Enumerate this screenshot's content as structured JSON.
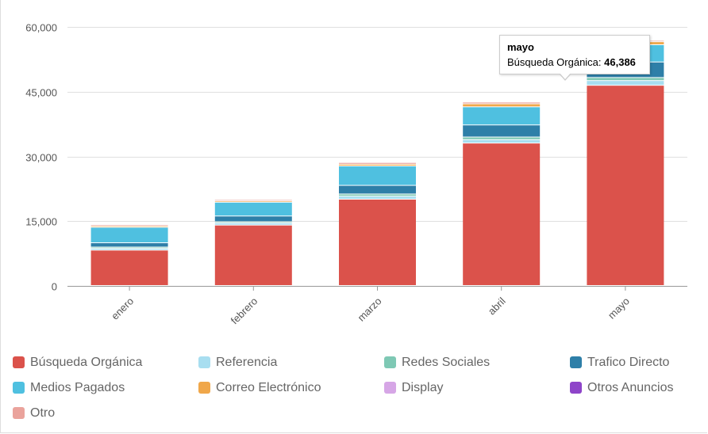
{
  "chart_data": {
    "type": "bar",
    "stacked": true,
    "categories": [
      "enero",
      "febrero",
      "marzo",
      "abril",
      "mayo"
    ],
    "ylim": [
      0,
      60000
    ],
    "yticks": [
      "0",
      "15,000",
      "30,000",
      "45,000",
      "60,000"
    ],
    "ytick_values": [
      0,
      15000,
      30000,
      45000,
      60000
    ],
    "grid": true,
    "legend_position": "bottom",
    "series": [
      {
        "name": "Búsqueda Orgánica",
        "color": "#db524b",
        "values": [
          8200,
          14000,
          20000,
          33000,
          46386
        ]
      },
      {
        "name": "Referencia",
        "color": "#a8def0",
        "values": [
          400,
          500,
          700,
          800,
          1100
        ]
      },
      {
        "name": "Redes Sociales",
        "color": "#7ec8b4",
        "values": [
          300,
          300,
          500,
          600,
          700
        ]
      },
      {
        "name": "Trafico Directo",
        "color": "#2e7fa8",
        "values": [
          1000,
          1300,
          2000,
          2800,
          3600
        ]
      },
      {
        "name": "Medios Pagados",
        "color": "#4fc0e0",
        "values": [
          3600,
          3200,
          4500,
          4200,
          4000
        ]
      },
      {
        "name": "Correo Electrónico",
        "color": "#f0a74a",
        "values": [
          300,
          300,
          400,
          700,
          700
        ]
      },
      {
        "name": "Display",
        "color": "#d6a6e6",
        "values": [
          0,
          0,
          0,
          0,
          0
        ]
      },
      {
        "name": "Otros Anuncios",
        "color": "#8e44c9",
        "values": [
          0,
          0,
          0,
          0,
          0
        ]
      },
      {
        "name": "Otro",
        "color": "#eaa39c",
        "values": [
          300,
          300,
          400,
          400,
          300
        ]
      }
    ]
  },
  "tooltip": {
    "title": "mayo",
    "label": "Búsqueda Orgánica: ",
    "value": "46,386"
  }
}
